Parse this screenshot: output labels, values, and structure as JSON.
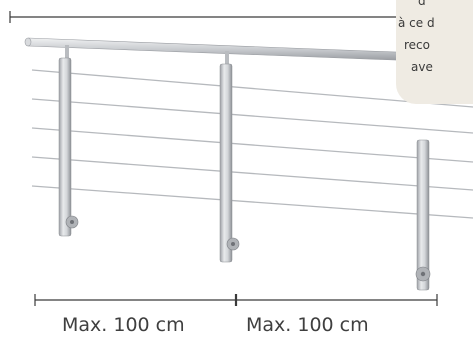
{
  "note": {
    "lines": [
      "d",
      "à ce d",
      "reco",
      "ave"
    ]
  },
  "dimensions": {
    "left_label": "Max. 100 cm",
    "right_label": "Max. 100 cm"
  },
  "colors": {
    "steel": "#c9ccd0",
    "steel_dark": "#8d9095",
    "line": "#3a3a3a",
    "note_bg": "#efebe3"
  }
}
